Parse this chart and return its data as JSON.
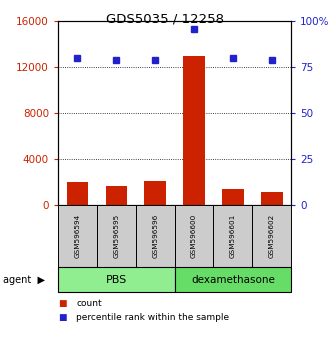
{
  "title": "GDS5035 / 12258",
  "samples": [
    "GSM596594",
    "GSM596595",
    "GSM596596",
    "GSM596600",
    "GSM596601",
    "GSM596602"
  ],
  "counts": [
    2000,
    1700,
    2100,
    13000,
    1400,
    1200
  ],
  "percentiles": [
    80,
    79,
    79,
    96,
    80,
    79
  ],
  "groups": [
    "PBS",
    "PBS",
    "PBS",
    "dexamethasone",
    "dexamethasone",
    "dexamethasone"
  ],
  "pbs_color": "#90EE90",
  "dex_color": "#66DD66",
  "bar_color": "#CC2200",
  "dot_color": "#2222CC",
  "left_ylim": [
    0,
    16000
  ],
  "right_ylim": [
    0,
    100
  ],
  "left_yticks": [
    0,
    4000,
    8000,
    12000,
    16000
  ],
  "left_yticklabels": [
    "0",
    "4000",
    "8000",
    "12000",
    "16000"
  ],
  "right_yticks": [
    0,
    25,
    50,
    75,
    100
  ],
  "right_yticklabels": [
    "0",
    "25",
    "50",
    "75",
    "100%"
  ],
  "legend_count_label": "count",
  "legend_pct_label": "percentile rank within the sample",
  "agent_label": "agent"
}
